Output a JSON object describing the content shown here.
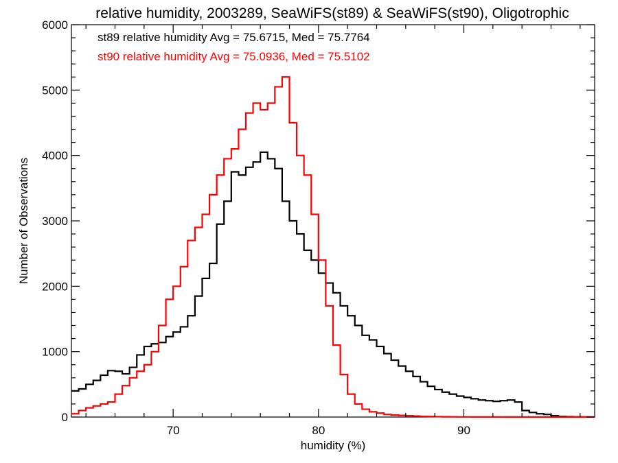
{
  "chart_data": {
    "type": "line",
    "title": "relative humidity, 2003289, SeaWiFS(st89) & SeaWiFS(st90), Oligotrophic",
    "xlabel": "humidity (%)",
    "ylabel": "Number of Observations",
    "xlim": [
      63,
      99
    ],
    "ylim": [
      0,
      6000
    ],
    "x_ticks": [
      70,
      80,
      90
    ],
    "y_ticks": [
      0,
      1000,
      2000,
      3000,
      4000,
      5000,
      6000
    ],
    "grid": false,
    "legend_placement": "top-left",
    "step_style": "histogram",
    "annotations": [
      {
        "text": "st89 relative humidity Avg = 75.6715, Med = 75.7764",
        "color": "#000000"
      },
      {
        "text": "st90 relative humidity Avg = 75.0936, Med = 75.5102",
        "color": "#ff0000"
      }
    ],
    "series": [
      {
        "color": "#000000",
        "points": [
          [
            63.0,
            400
          ],
          [
            63.5,
            430
          ],
          [
            64.0,
            500
          ],
          [
            64.5,
            560
          ],
          [
            65.0,
            640
          ],
          [
            65.5,
            710
          ],
          [
            66.0,
            700
          ],
          [
            66.5,
            660
          ],
          [
            67.0,
            760
          ],
          [
            67.5,
            950
          ],
          [
            68.0,
            1080
          ],
          [
            68.5,
            1120
          ],
          [
            69.0,
            1140
          ],
          [
            69.5,
            1230
          ],
          [
            70.0,
            1300
          ],
          [
            70.5,
            1380
          ],
          [
            71.0,
            1550
          ],
          [
            71.5,
            1850
          ],
          [
            72.0,
            2120
          ],
          [
            72.5,
            2350
          ],
          [
            73.0,
            2950
          ],
          [
            73.5,
            3300
          ],
          [
            74.0,
            3750
          ],
          [
            74.5,
            3700
          ],
          [
            75.0,
            3820
          ],
          [
            75.5,
            3900
          ],
          [
            76.0,
            4050
          ],
          [
            76.5,
            3950
          ],
          [
            77.0,
            3800
          ],
          [
            77.5,
            3300
          ],
          [
            78.0,
            3000
          ],
          [
            78.5,
            2800
          ],
          [
            79.0,
            2550
          ],
          [
            79.5,
            2400
          ],
          [
            80.0,
            2200
          ],
          [
            80.5,
            2050
          ],
          [
            81.0,
            1900
          ],
          [
            81.5,
            1700
          ],
          [
            82.0,
            1550
          ],
          [
            82.5,
            1400
          ],
          [
            83.0,
            1250
          ],
          [
            83.5,
            1180
          ],
          [
            84.0,
            1080
          ],
          [
            84.5,
            970
          ],
          [
            85.0,
            870
          ],
          [
            85.5,
            780
          ],
          [
            86.0,
            700
          ],
          [
            86.5,
            620
          ],
          [
            87.0,
            540
          ],
          [
            87.5,
            470
          ],
          [
            88.0,
            420
          ],
          [
            88.5,
            380
          ],
          [
            89.0,
            350
          ],
          [
            89.5,
            320
          ],
          [
            90.0,
            300
          ],
          [
            90.5,
            280
          ],
          [
            91.0,
            260
          ],
          [
            91.5,
            250
          ],
          [
            92.0,
            240
          ],
          [
            92.5,
            250
          ],
          [
            93.0,
            260
          ],
          [
            93.5,
            230
          ],
          [
            94.0,
            100
          ],
          [
            94.5,
            70
          ],
          [
            95.0,
            50
          ],
          [
            95.5,
            40
          ],
          [
            96.0,
            20
          ],
          [
            96.5,
            10
          ],
          [
            97.0,
            5
          ],
          [
            97.5,
            3
          ],
          [
            98.0,
            2
          ],
          [
            98.5,
            1
          ]
        ]
      },
      {
        "color": "#ff0000",
        "points": [
          [
            63.0,
            50
          ],
          [
            63.5,
            100
          ],
          [
            64.0,
            140
          ],
          [
            64.5,
            170
          ],
          [
            65.0,
            200
          ],
          [
            65.5,
            230
          ],
          [
            66.0,
            350
          ],
          [
            66.5,
            480
          ],
          [
            67.0,
            600
          ],
          [
            67.5,
            700
          ],
          [
            68.0,
            800
          ],
          [
            68.5,
            1000
          ],
          [
            69.0,
            1400
          ],
          [
            69.5,
            1800
          ],
          [
            70.0,
            2000
          ],
          [
            70.5,
            2300
          ],
          [
            71.0,
            2700
          ],
          [
            71.5,
            2900
          ],
          [
            72.0,
            3100
          ],
          [
            72.5,
            3400
          ],
          [
            73.0,
            3700
          ],
          [
            73.5,
            3950
          ],
          [
            74.0,
            4100
          ],
          [
            74.5,
            4400
          ],
          [
            75.0,
            4650
          ],
          [
            75.5,
            4800
          ],
          [
            76.0,
            4700
          ],
          [
            76.5,
            4800
          ],
          [
            77.0,
            5050
          ],
          [
            77.5,
            5200
          ],
          [
            78.0,
            4500
          ],
          [
            78.5,
            4000
          ],
          [
            79.0,
            3700
          ],
          [
            79.5,
            3100
          ],
          [
            80.0,
            2400
          ],
          [
            80.5,
            1700
          ],
          [
            81.0,
            1100
          ],
          [
            81.5,
            650
          ],
          [
            82.0,
            350
          ],
          [
            82.5,
            200
          ],
          [
            83.0,
            120
          ],
          [
            83.5,
            80
          ],
          [
            84.0,
            60
          ],
          [
            84.5,
            40
          ],
          [
            85.0,
            30
          ],
          [
            85.5,
            25
          ],
          [
            86.0,
            20
          ],
          [
            86.5,
            15
          ],
          [
            87.0,
            10
          ],
          [
            87.5,
            8
          ],
          [
            88.0,
            6
          ],
          [
            88.5,
            4
          ],
          [
            89.0,
            3
          ],
          [
            89.5,
            2
          ],
          [
            90.0,
            2
          ],
          [
            90.5,
            1
          ],
          [
            91.0,
            1
          ],
          [
            91.5,
            1
          ],
          [
            92.0,
            1
          ],
          [
            92.5,
            0
          ],
          [
            93.0,
            0
          ],
          [
            93.5,
            0
          ],
          [
            94.0,
            0
          ],
          [
            94.5,
            0
          ],
          [
            95.0,
            0
          ],
          [
            95.5,
            0
          ],
          [
            96.0,
            0
          ],
          [
            96.5,
            0
          ],
          [
            97.0,
            0
          ],
          [
            97.5,
            0
          ],
          [
            98.0,
            0
          ],
          [
            98.5,
            0
          ]
        ]
      }
    ]
  }
}
